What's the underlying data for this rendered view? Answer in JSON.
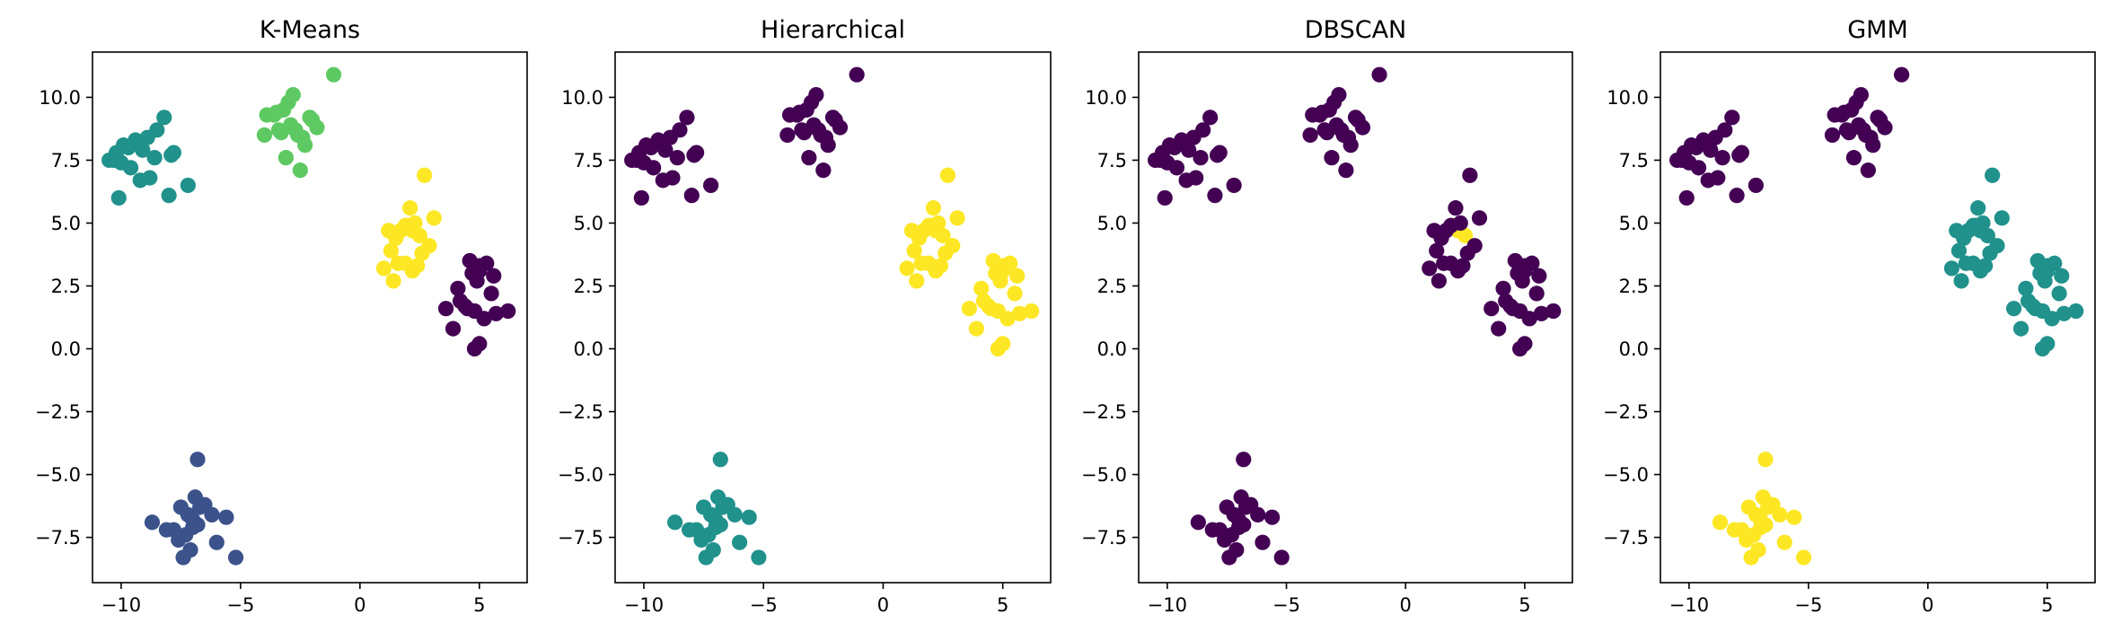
{
  "chart_data": [
    {
      "type": "scatter",
      "title": "K-Means",
      "xlabel": "",
      "ylabel": "",
      "xlim": [
        -11.2,
        7.0
      ],
      "ylim": [
        -9.3,
        11.8
      ],
      "xticks": [
        -10,
        -5,
        0,
        5
      ],
      "xtick_labels": [
        "−10",
        "−5",
        "0",
        "5"
      ],
      "yticks": [
        -7.5,
        -5.0,
        -2.5,
        0.0,
        2.5,
        5.0,
        7.5,
        10.0
      ],
      "ytick_labels": [
        "−7.5",
        "−5.0",
        "−2.5",
        "0.0",
        "2.5",
        "5.0",
        "7.5",
        "10.0"
      ],
      "grid": false,
      "colormap": [
        "#440154",
        "#3b528b",
        "#21918c",
        "#5ec962",
        "#fde725"
      ],
      "labels": [
        0,
        0,
        0,
        0,
        0,
        0,
        0,
        0,
        0,
        0,
        0,
        0,
        0,
        0,
        0,
        0,
        0,
        0,
        0,
        0,
        1,
        1,
        1,
        1,
        1,
        1,
        1,
        1,
        1,
        1,
        1,
        1,
        1,
        1,
        1,
        1,
        1,
        1,
        1,
        1,
        2,
        2,
        2,
        2,
        2,
        2,
        2,
        2,
        2,
        2,
        2,
        2,
        2,
        2,
        2,
        2,
        2,
        2,
        2,
        2,
        3,
        3,
        3,
        3,
        3,
        3,
        3,
        3,
        3,
        3,
        3,
        3,
        3,
        3,
        3,
        3,
        3,
        3,
        3,
        3,
        4,
        4,
        4,
        4,
        4,
        4,
        4,
        4,
        4,
        4,
        4,
        4,
        4,
        4,
        4,
        4,
        4,
        4,
        4,
        4
      ]
    },
    {
      "type": "scatter",
      "title": "Hierarchical",
      "xlabel": "",
      "ylabel": "",
      "xlim": [
        -11.2,
        7.0
      ],
      "ylim": [
        -9.3,
        11.8
      ],
      "xticks": [
        -10,
        -5,
        0,
        5
      ],
      "xtick_labels": [
        "−10",
        "−5",
        "0",
        "5"
      ],
      "yticks": [
        -7.5,
        -5.0,
        -2.5,
        0.0,
        2.5,
        5.0,
        7.5,
        10.0
      ],
      "ytick_labels": [
        "−7.5",
        "−5.0",
        "−2.5",
        "0.0",
        "2.5",
        "5.0",
        "7.5",
        "10.0"
      ],
      "grid": false,
      "colormap": [
        "#440154",
        "#21918c",
        "#fde725"
      ],
      "labels": [
        2,
        2,
        2,
        2,
        2,
        2,
        2,
        2,
        2,
        2,
        2,
        2,
        2,
        2,
        2,
        2,
        2,
        2,
        2,
        2,
        1,
        1,
        1,
        1,
        1,
        1,
        1,
        1,
        1,
        1,
        1,
        1,
        1,
        1,
        1,
        1,
        1,
        1,
        1,
        1,
        0,
        0,
        0,
        0,
        0,
        0,
        0,
        0,
        0,
        0,
        0,
        0,
        0,
        0,
        0,
        0,
        0,
        0,
        0,
        0,
        0,
        0,
        0,
        0,
        0,
        0,
        0,
        0,
        0,
        0,
        0,
        0,
        0,
        0,
        0,
        0,
        0,
        0,
        0,
        0,
        2,
        2,
        2,
        2,
        2,
        2,
        2,
        2,
        2,
        2,
        2,
        2,
        2,
        2,
        2,
        2,
        2,
        2,
        2,
        2
      ]
    },
    {
      "type": "scatter",
      "title": "DBSCAN",
      "xlabel": "",
      "ylabel": "",
      "xlim": [
        -11.2,
        7.0
      ],
      "ylim": [
        -9.3,
        11.8
      ],
      "xticks": [
        -10,
        -5,
        0,
        5
      ],
      "xtick_labels": [
        "−10",
        "−5",
        "0",
        "5"
      ],
      "yticks": [
        -7.5,
        -5.0,
        -2.5,
        0.0,
        2.5,
        5.0,
        7.5,
        10.0
      ],
      "ytick_labels": [
        "−7.5",
        "−5.0",
        "−2.5",
        "0.0",
        "2.5",
        "5.0",
        "7.5",
        "10.0"
      ],
      "grid": false,
      "colormap": [
        "#440154",
        "#fde725"
      ],
      "labels": [
        0,
        0,
        0,
        0,
        0,
        0,
        0,
        0,
        0,
        0,
        0,
        0,
        0,
        0,
        0,
        0,
        0,
        0,
        0,
        0,
        0,
        0,
        0,
        0,
        0,
        0,
        0,
        0,
        0,
        0,
        0,
        0,
        0,
        0,
        0,
        0,
        0,
        0,
        0,
        0,
        0,
        0,
        0,
        0,
        0,
        0,
        0,
        0,
        0,
        0,
        0,
        0,
        0,
        0,
        0,
        0,
        0,
        0,
        0,
        0,
        0,
        0,
        0,
        0,
        0,
        0,
        0,
        0,
        0,
        0,
        0,
        0,
        0,
        0,
        0,
        0,
        0,
        0,
        0,
        0,
        1,
        1,
        1,
        0,
        0,
        0,
        0,
        0,
        0,
        0,
        0,
        0,
        0,
        0,
        0,
        0,
        0,
        0,
        0,
        0
      ]
    },
    {
      "type": "scatter",
      "title": "GMM",
      "xlabel": "",
      "ylabel": "",
      "xlim": [
        -11.2,
        7.0
      ],
      "ylim": [
        -9.3,
        11.8
      ],
      "xticks": [
        -10,
        -5,
        0,
        5
      ],
      "xtick_labels": [
        "−10",
        "−5",
        "0",
        "5"
      ],
      "yticks": [
        -7.5,
        -5.0,
        -2.5,
        0.0,
        2.5,
        5.0,
        7.5,
        10.0
      ],
      "ytick_labels": [
        "−7.5",
        "−5.0",
        "−2.5",
        "0.0",
        "2.5",
        "5.0",
        "7.5",
        "10.0"
      ],
      "grid": false,
      "colormap": [
        "#440154",
        "#21918c",
        "#fde725"
      ],
      "labels": [
        1,
        1,
        1,
        1,
        1,
        1,
        1,
        1,
        1,
        1,
        1,
        1,
        1,
        1,
        1,
        1,
        1,
        1,
        1,
        1,
        2,
        2,
        2,
        2,
        2,
        2,
        2,
        2,
        2,
        2,
        2,
        2,
        2,
        2,
        2,
        2,
        2,
        2,
        2,
        2,
        0,
        0,
        0,
        0,
        0,
        0,
        0,
        0,
        0,
        0,
        0,
        0,
        0,
        0,
        0,
        0,
        0,
        0,
        0,
        0,
        0,
        0,
        0,
        0,
        0,
        0,
        0,
        0,
        0,
        0,
        0,
        0,
        0,
        0,
        0,
        0,
        0,
        0,
        0,
        0,
        1,
        1,
        1,
        1,
        1,
        1,
        1,
        1,
        1,
        1,
        1,
        1,
        1,
        1,
        1,
        1,
        1,
        1,
        1,
        1
      ]
    }
  ],
  "points": {
    "x": [
      4.6,
      5.0,
      5.3,
      5.6,
      4.1,
      4.8,
      5.2,
      4.4,
      5.5,
      4.2,
      4.9,
      3.9,
      5.7,
      4.5,
      5.0,
      3.6,
      6.2,
      4.8,
      5.0,
      4.7,
      -7.0,
      -6.5,
      -7.2,
      -6.8,
      -7.5,
      -6.2,
      -7.8,
      -6.9,
      -8.7,
      -8.1,
      -7.3,
      -7.0,
      -7.6,
      -5.6,
      -6.7,
      -7.1,
      -6.0,
      -5.2,
      -6.8,
      -7.4,
      -9.7,
      -10.3,
      -9.4,
      -8.2,
      -9.1,
      -10.0,
      -8.9,
      -9.6,
      -7.8,
      -8.5,
      -10.1,
      -9.2,
      -8.0,
      -7.2,
      -8.8,
      -9.9,
      -7.9,
      -8.6,
      -10.5,
      -10.2,
      -3.2,
      -2.8,
      -3.6,
      -2.4,
      -3.0,
      -3.4,
      -2.6,
      -1.8,
      -2.0,
      -3.9,
      -2.9,
      -3.3,
      -2.1,
      -1.1,
      -3.5,
      -2.7,
      -2.3,
      -3.1,
      -4.0,
      -2.5,
      2.2,
      2.5,
      2.0,
      1.7,
      2.9,
      1.3,
      1.9,
      2.6,
      1.2,
      2.2,
      1.6,
      3.1,
      1.0,
      2.4,
      1.9,
      2.1,
      1.4,
      2.3,
      2.7,
      1.5
    ],
    "y": [
      3.5,
      3.1,
      3.4,
      2.9,
      2.4,
      1.5,
      1.2,
      1.7,
      2.2,
      1.9,
      2.7,
      0.8,
      1.4,
      1.6,
      0.2,
      1.6,
      1.5,
      0.0,
      3.3,
      3.0,
      -6.8,
      -6.2,
      -6.6,
      -7.0,
      -6.3,
      -6.6,
      -7.2,
      -5.9,
      -6.9,
      -7.2,
      -7.4,
      -7.1,
      -7.6,
      -6.7,
      -6.3,
      -8.0,
      -7.7,
      -8.3,
      -4.4,
      -8.3,
      8.0,
      7.5,
      8.3,
      9.2,
      7.9,
      7.4,
      8.4,
      7.2,
      7.8,
      8.7,
      6.0,
      6.7,
      6.1,
      6.5,
      6.8,
      8.1,
      7.7,
      7.6,
      7.5,
      7.8,
      9.5,
      10.1,
      9.3,
      8.4,
      9.8,
      8.7,
      8.5,
      8.8,
      9.1,
      9.3,
      8.9,
      8.6,
      9.2,
      10.9,
      9.4,
      8.7,
      8.1,
      7.6,
      8.5,
      7.1,
      4.7,
      4.5,
      4.9,
      4.7,
      4.1,
      3.9,
      3.4,
      3.8,
      4.7,
      3.1,
      3.4,
      5.2,
      3.2,
      3.3,
      4.9,
      5.6,
      2.7,
      5.0,
      6.9,
      4.4
    ]
  }
}
